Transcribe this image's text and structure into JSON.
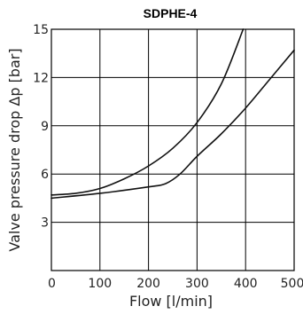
{
  "chart_data": {
    "type": "line",
    "title": "SDPHE-4",
    "xlabel": "Flow [l/min]",
    "ylabel": "Valve pressure drop Δp [bar]",
    "xlim": [
      0,
      500
    ],
    "ylim": [
      0,
      15
    ],
    "xticks": [
      0,
      100,
      200,
      300,
      400,
      500
    ],
    "yticks": [
      3,
      6,
      9,
      12,
      15
    ],
    "grid": true,
    "series": [
      {
        "x": [
          0,
          50,
          100,
          150,
          200,
          250,
          300,
          350,
          395
        ],
        "y": [
          4.7,
          4.8,
          5.1,
          5.7,
          6.5,
          7.6,
          9.2,
          11.6,
          15.0
        ]
      },
      {
        "x": [
          0,
          100,
          200,
          235,
          265,
          300,
          350,
          400,
          450,
          500
        ],
        "y": [
          4.5,
          4.8,
          5.2,
          5.4,
          6.0,
          7.1,
          8.5,
          10.1,
          11.9,
          13.7
        ]
      }
    ]
  }
}
